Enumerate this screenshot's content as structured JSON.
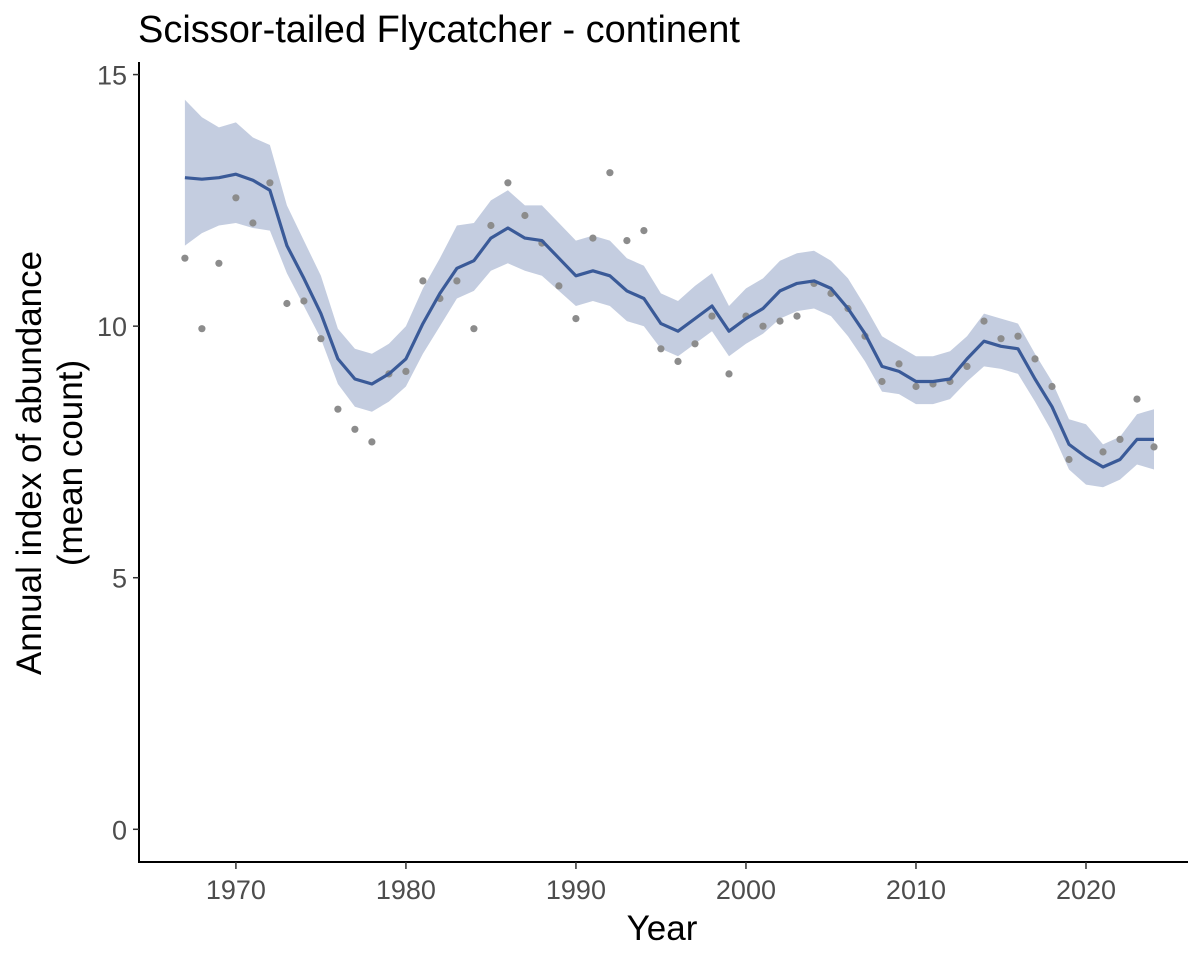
{
  "chart_data": {
    "type": "line",
    "title": "Scissor-tailed Flycatcher - continent",
    "xlabel": "Year",
    "ylabel_line1": "Annual index of abundance",
    "ylabel_line2": "(mean count)",
    "xlim": [
      1964.3,
      1926.0
    ],
    "ylim": [
      -0.65,
      15.25
    ],
    "x_ticks": [
      1970,
      1980,
      1990,
      2000,
      2010,
      2020
    ],
    "y_ticks": [
      0,
      5,
      10,
      15
    ],
    "grid": false,
    "legend": "none",
    "colors": {
      "line": "#3a5a98",
      "ribbon": "#c4cde0",
      "points": "#8c8c8c"
    },
    "years": [
      1967,
      1968,
      1969,
      1970,
      1971,
      1972,
      1973,
      1974,
      1975,
      1976,
      1977,
      1978,
      1979,
      1980,
      1981,
      1982,
      1983,
      1984,
      1985,
      1986,
      1987,
      1988,
      1989,
      1990,
      1991,
      1992,
      1993,
      1994,
      1995,
      1996,
      1997,
      1998,
      1999,
      2000,
      2001,
      2002,
      2003,
      2004,
      2005,
      2006,
      2007,
      2008,
      2009,
      2010,
      2011,
      2012,
      2013,
      2014,
      2015,
      2016,
      2017,
      2018,
      2019,
      2020,
      2021,
      2022,
      2023,
      2024
    ],
    "index": [
      12.95,
      12.92,
      12.95,
      13.02,
      12.9,
      12.7,
      11.6,
      10.95,
      10.25,
      9.35,
      8.95,
      8.85,
      9.05,
      9.35,
      10.05,
      10.65,
      11.15,
      11.3,
      11.75,
      11.95,
      11.75,
      11.7,
      11.35,
      11.0,
      11.1,
      11.0,
      10.7,
      10.55,
      10.05,
      9.9,
      10.15,
      10.4,
      9.9,
      10.15,
      10.35,
      10.7,
      10.85,
      10.9,
      10.75,
      10.35,
      9.85,
      9.2,
      9.1,
      8.9,
      8.9,
      8.95,
      9.35,
      9.7,
      9.6,
      9.55,
      8.95,
      8.4,
      7.65,
      7.4,
      7.2,
      7.35,
      7.75,
      7.75
    ],
    "lower_ci": [
      11.6,
      11.85,
      12.0,
      12.05,
      11.95,
      11.9,
      11.05,
      10.4,
      9.75,
      8.85,
      8.4,
      8.3,
      8.5,
      8.8,
      9.45,
      10.0,
      10.55,
      10.7,
      11.1,
      11.25,
      11.1,
      11.0,
      10.7,
      10.4,
      10.5,
      10.4,
      10.1,
      10.0,
      9.55,
      9.4,
      9.65,
      9.9,
      9.4,
      9.65,
      9.85,
      10.15,
      10.3,
      10.35,
      10.2,
      9.8,
      9.3,
      8.7,
      8.65,
      8.45,
      8.45,
      8.55,
      8.9,
      9.2,
      9.15,
      9.05,
      8.5,
      7.9,
      7.15,
      6.85,
      6.8,
      6.95,
      7.25,
      7.15
    ],
    "upper_ci": [
      14.5,
      14.15,
      13.95,
      14.05,
      13.75,
      13.6,
      12.4,
      11.7,
      11.0,
      9.95,
      9.55,
      9.45,
      9.65,
      10.0,
      10.75,
      11.35,
      12.0,
      12.05,
      12.5,
      12.7,
      12.4,
      12.4,
      12.05,
      11.7,
      11.8,
      11.7,
      11.35,
      11.2,
      10.65,
      10.5,
      10.8,
      11.05,
      10.4,
      10.75,
      10.95,
      11.3,
      11.45,
      11.5,
      11.3,
      10.95,
      10.4,
      9.8,
      9.6,
      9.4,
      9.4,
      9.5,
      9.8,
      10.25,
      10.15,
      10.05,
      9.45,
      8.9,
      8.15,
      8.05,
      7.65,
      7.8,
      8.25,
      8.35
    ],
    "observed": [
      [
        1967,
        11.35
      ],
      [
        1968,
        9.95
      ],
      [
        1969,
        11.25
      ],
      [
        1970,
        12.55
      ],
      [
        1971,
        12.05
      ],
      [
        1972,
        12.85
      ],
      [
        1973,
        10.45
      ],
      [
        1974,
        10.5
      ],
      [
        1975,
        9.75
      ],
      [
        1976,
        8.35
      ],
      [
        1977,
        7.95
      ],
      [
        1978,
        7.7
      ],
      [
        1979,
        9.05
      ],
      [
        1980,
        9.1
      ],
      [
        1981,
        10.9
      ],
      [
        1982,
        10.55
      ],
      [
        1983,
        10.9
      ],
      [
        1984,
        9.95
      ],
      [
        1985,
        12.0
      ],
      [
        1986,
        12.85
      ],
      [
        1987,
        12.2
      ],
      [
        1988,
        11.65
      ],
      [
        1989,
        10.8
      ],
      [
        1990,
        10.15
      ],
      [
        1991,
        11.75
      ],
      [
        1992,
        13.05
      ],
      [
        1993,
        11.7
      ],
      [
        1994,
        11.9
      ],
      [
        1995,
        9.55
      ],
      [
        1996,
        9.3
      ],
      [
        1997,
        9.65
      ],
      [
        1998,
        10.2
      ],
      [
        1999,
        9.05
      ],
      [
        2000,
        10.2
      ],
      [
        2001,
        10.0
      ],
      [
        2002,
        10.1
      ],
      [
        2003,
        10.2
      ],
      [
        2004,
        10.85
      ],
      [
        2005,
        10.65
      ],
      [
        2006,
        10.35
      ],
      [
        2007,
        9.8
      ],
      [
        2008,
        8.9
      ],
      [
        2009,
        9.25
      ],
      [
        2010,
        8.8
      ],
      [
        2011,
        8.85
      ],
      [
        2012,
        8.9
      ],
      [
        2013,
        9.2
      ],
      [
        2014,
        10.1
      ],
      [
        2015,
        9.75
      ],
      [
        2016,
        9.8
      ],
      [
        2017,
        9.35
      ],
      [
        2018,
        8.8
      ],
      [
        2019,
        7.35
      ],
      [
        2021,
        7.5
      ],
      [
        2022,
        7.75
      ],
      [
        2023,
        8.55
      ],
      [
        2024,
        7.6
      ]
    ]
  }
}
